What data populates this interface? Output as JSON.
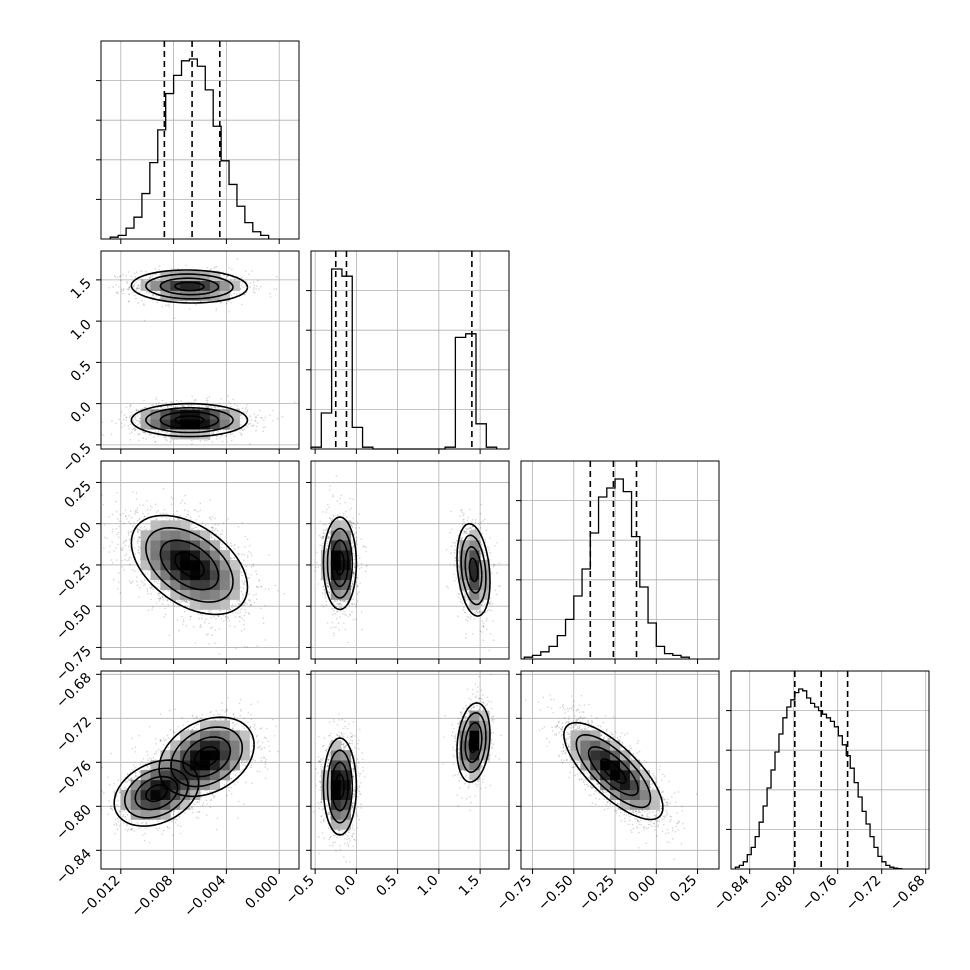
{
  "chart_data": {
    "type": "corner",
    "grid": true,
    "parameters": [
      {
        "range": [
          -0.0135,
          0.0015
        ],
        "ticks": [
          -0.012,
          -0.008,
          -0.004,
          0.0
        ],
        "tick_labels": [
          "−0.012",
          "−0.008",
          "−0.004",
          "0.000"
        ],
        "quantiles": [
          -0.0087,
          -0.0066,
          -0.0045
        ],
        "histogram": {
          "edges": [
            -0.0128,
            -0.0122,
            -0.0116,
            -0.011,
            -0.0104,
            -0.0098,
            -0.0092,
            -0.0086,
            -0.008,
            -0.0074,
            -0.0068,
            -0.0062,
            -0.0056,
            -0.005,
            -0.0044,
            -0.0038,
            -0.0032,
            -0.0026,
            -0.002,
            -0.0014,
            -0.0008
          ],
          "counts": [
            0.01,
            0.02,
            0.06,
            0.12,
            0.25,
            0.42,
            0.6,
            0.8,
            0.9,
            0.98,
            0.99,
            0.95,
            0.82,
            0.62,
            0.43,
            0.3,
            0.18,
            0.09,
            0.04,
            0.02
          ]
        }
      },
      {
        "range": [
          -0.55,
          1.85
        ],
        "ticks": [
          -0.5,
          0.0,
          0.5,
          1.0,
          1.5
        ],
        "tick_labels": [
          "−0.5",
          "0.0",
          "0.5",
          "1.0",
          "1.5"
        ],
        "quantiles": [
          -0.25,
          -0.12,
          1.4
        ],
        "histogram": {
          "edges": [
            -0.55,
            -0.425,
            -0.3,
            -0.175,
            -0.05,
            0.075,
            0.2,
            0.325,
            0.45,
            0.575,
            0.7,
            0.825,
            0.95,
            1.075,
            1.2,
            1.325,
            1.45,
            1.575,
            1.7
          ],
          "counts": [
            0.01,
            0.2,
            1.0,
            0.96,
            0.12,
            0.01,
            0,
            0,
            0,
            0,
            0,
            0,
            0,
            0.01,
            0.62,
            0.64,
            0.14,
            0.01
          ]
        }
      },
      {
        "range": [
          -0.82,
          0.38
        ],
        "ticks": [
          -0.75,
          -0.5,
          -0.25,
          0.0,
          0.25
        ],
        "tick_labels": [
          "−0.75",
          "−0.50",
          "−0.25",
          "0.00",
          "0.25"
        ],
        "quantiles": [
          -0.4,
          -0.26,
          -0.12
        ],
        "histogram": {
          "edges": [
            -0.8,
            -0.75,
            -0.7,
            -0.65,
            -0.6,
            -0.55,
            -0.5,
            -0.45,
            -0.4,
            -0.35,
            -0.3,
            -0.25,
            -0.2,
            -0.15,
            -0.1,
            -0.05,
            0.0,
            0.05,
            0.1,
            0.15,
            0.2
          ],
          "counts": [
            0.01,
            0.02,
            0.04,
            0.07,
            0.13,
            0.22,
            0.35,
            0.5,
            0.7,
            0.9,
            0.95,
            1.0,
            0.93,
            0.68,
            0.4,
            0.2,
            0.07,
            0.03,
            0.02,
            0.01
          ]
        }
      },
      {
        "range": [
          -0.857,
          -0.677
        ],
        "ticks": [
          -0.84,
          -0.8,
          -0.76,
          -0.72,
          -0.68
        ],
        "tick_labels": [
          "−0.84",
          "−0.80",
          "−0.76",
          "−0.72",
          "−0.68"
        ],
        "quantiles": [
          -0.799,
          -0.775,
          -0.751
        ],
        "histogram": {
          "edges": [
            -0.853,
            -0.8494,
            -0.8458,
            -0.8422,
            -0.8386,
            -0.835,
            -0.8314,
            -0.8278,
            -0.8242,
            -0.8206,
            -0.817,
            -0.8134,
            -0.8098,
            -0.8062,
            -0.8026,
            -0.799,
            -0.7954,
            -0.7918,
            -0.7882,
            -0.7846,
            -0.781,
            -0.7774,
            -0.7738,
            -0.7702,
            -0.7666,
            -0.763,
            -0.7594,
            -0.7558,
            -0.7522,
            -0.7486,
            -0.745,
            -0.7414,
            -0.7378,
            -0.7342,
            -0.7306,
            -0.727,
            -0.7234,
            -0.7198,
            -0.7162,
            -0.7126,
            -0.709,
            -0.7054,
            -0.7018
          ],
          "counts": [
            0.01,
            0.02,
            0.04,
            0.08,
            0.12,
            0.18,
            0.26,
            0.35,
            0.45,
            0.55,
            0.65,
            0.75,
            0.84,
            0.9,
            0.94,
            0.98,
            1.0,
            0.99,
            0.95,
            0.92,
            0.9,
            0.88,
            0.86,
            0.84,
            0.82,
            0.79,
            0.74,
            0.69,
            0.63,
            0.56,
            0.48,
            0.4,
            0.32,
            0.25,
            0.18,
            0.12,
            0.07,
            0.04,
            0.02,
            0.01,
            0.005,
            0.002
          ]
        }
      }
    ],
    "panels_2d": [
      {
        "x_param": 0,
        "y_param": 1,
        "modes": [
          {
            "center": [
              -0.0068,
              1.42
            ],
            "sx": 0.0022,
            "sy": 0.1,
            "rho": -0.05,
            "w": 0.42
          },
          {
            "center": [
              -0.0068,
              -0.2
            ],
            "sx": 0.0022,
            "sy": 0.1,
            "rho": 0.0,
            "w": 0.58
          }
        ]
      },
      {
        "x_param": 0,
        "y_param": 2,
        "modes": [
          {
            "center": [
              -0.0068,
              -0.25
            ],
            "sx": 0.0022,
            "sy": 0.15,
            "rho": -0.45,
            "w": 1.0
          }
        ]
      },
      {
        "x_param": 1,
        "y_param": 2,
        "modes": [
          {
            "center": [
              -0.2,
              -0.24
            ],
            "sx": 0.1,
            "sy": 0.14,
            "rho": 0.0,
            "w": 0.58
          },
          {
            "center": [
              1.42,
              -0.28
            ],
            "sx": 0.1,
            "sy": 0.14,
            "rho": -0.25,
            "w": 0.42
          }
        ]
      },
      {
        "x_param": 0,
        "y_param": 3,
        "modes": [
          {
            "center": [
              -0.0093,
              -0.788
            ],
            "sx": 0.0016,
            "sy": 0.015,
            "rho": 0.3,
            "w": 0.4
          },
          {
            "center": [
              -0.0055,
              -0.755
            ],
            "sx": 0.0018,
            "sy": 0.018,
            "rho": 0.3,
            "w": 0.6
          }
        ]
      },
      {
        "x_param": 1,
        "y_param": 3,
        "modes": [
          {
            "center": [
              -0.2,
              -0.782
            ],
            "sx": 0.1,
            "sy": 0.022,
            "rho": 0.0,
            "w": 0.58
          },
          {
            "center": [
              1.42,
              -0.742
            ],
            "sx": 0.1,
            "sy": 0.018,
            "rho": 0.2,
            "w": 0.42
          }
        ]
      },
      {
        "x_param": 2,
        "y_param": 3,
        "modes": [
          {
            "center": [
              -0.26,
              -0.768
            ],
            "sx": 0.15,
            "sy": 0.022,
            "rho": -0.75,
            "w": 1.0
          }
        ]
      }
    ]
  }
}
